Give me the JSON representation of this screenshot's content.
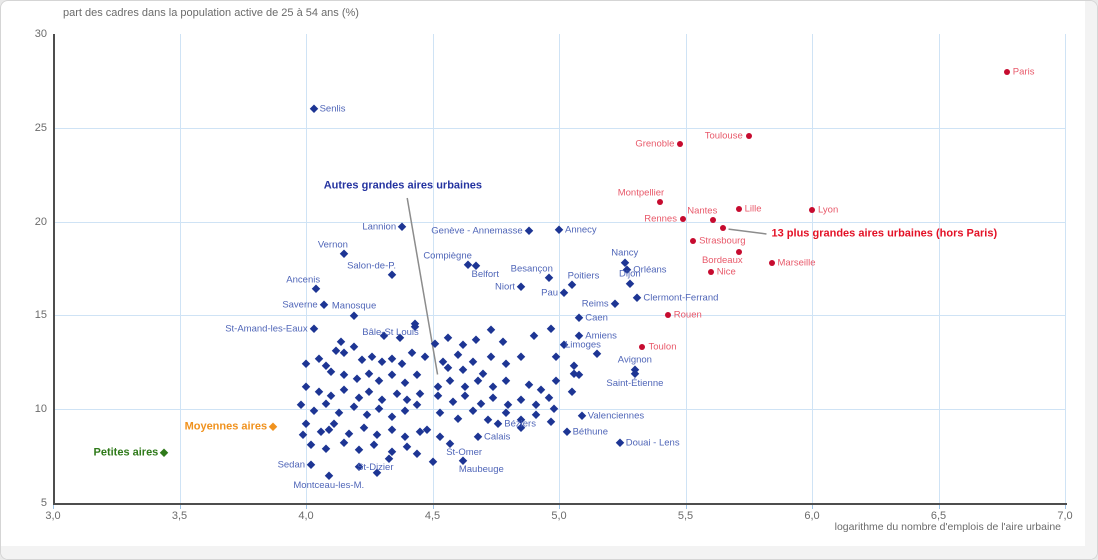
{
  "chart_data": {
    "type": "scatter",
    "title": "part des cadres dans la population active de 25 à 54 ans (%)",
    "xlabel": "logarithme du nombre d'emplois de l'aire urbaine",
    "x_axis": {
      "min": 3.0,
      "max": 7.0,
      "ticks": [
        {
          "label": "3,0",
          "v": 3.0
        },
        {
          "label": "3,5",
          "v": 3.5
        },
        {
          "label": "4,0",
          "v": 4.0
        },
        {
          "label": "4,5",
          "v": 4.5
        },
        {
          "label": "5,0",
          "v": 5.0
        },
        {
          "label": "5,5",
          "v": 5.5
        },
        {
          "label": "6,0",
          "v": 6.0
        },
        {
          "label": "6,5",
          "v": 6.5
        },
        {
          "label": "7,0",
          "v": 7.0
        }
      ]
    },
    "y_axis": {
      "min": 5,
      "max": 30,
      "ticks": [
        {
          "label": "5",
          "v": 5
        },
        {
          "label": "10",
          "v": 10
        },
        {
          "label": "15",
          "v": 15
        },
        {
          "label": "20",
          "v": 20
        },
        {
          "label": "25",
          "v": 25
        },
        {
          "label": "30",
          "v": 30
        }
      ]
    },
    "colors": {
      "grid": "#cfe3f5",
      "axis": "#4d4d4d",
      "text": "#6b6b6b",
      "leader": "#8c8c8c"
    },
    "grid": true,
    "legend_position": "annotations-in-plot",
    "series": [
      {
        "id": "grandes13",
        "name": "13 plus grandes aires urbaines (hors Paris)",
        "marker": "circle",
        "color": "#c60b2f",
        "label_color": "#e8596a",
        "points": [
          {
            "name": "Paris",
            "x": 6.77,
            "y": 27.97,
            "side": "right"
          },
          {
            "name": "Toulouse",
            "x": 5.75,
            "y": 24.56,
            "side": "left"
          },
          {
            "name": "Grenoble",
            "x": 5.48,
            "y": 24.14,
            "side": "left"
          },
          {
            "name": "Montpellier",
            "x": 5.4,
            "y": 21.04,
            "side": "above-left"
          },
          {
            "name": "Lyon",
            "x": 6.0,
            "y": 20.62,
            "side": "right"
          },
          {
            "name": "Lille",
            "x": 5.71,
            "y": 20.67,
            "side": "right"
          },
          {
            "name": "Nantes",
            "x": 5.61,
            "y": 20.08,
            "side": "above-left"
          },
          {
            "name": "Rennes",
            "x": 5.49,
            "y": 20.14,
            "side": "left"
          },
          {
            "name": "Strasbourg",
            "x": 5.53,
            "y": 18.97,
            "side": "right"
          },
          {
            "name": "Bordeaux",
            "x": 5.71,
            "y": 18.38,
            "side": "below-left"
          },
          {
            "name": "Marseille",
            "x": 5.84,
            "y": 17.79,
            "side": "right"
          },
          {
            "name": "Nice",
            "x": 5.6,
            "y": 17.31,
            "side": "right"
          },
          {
            "name": "Rouen",
            "x": 5.43,
            "y": 15.02,
            "side": "right"
          },
          {
            "name": "Toulon",
            "x": 5.33,
            "y": 13.32,
            "side": "right"
          }
        ],
        "extra": [
          [
            5.65,
            19.66
          ]
        ]
      },
      {
        "id": "autres",
        "name": "Autres grandes aires urbaines",
        "marker": "diamond",
        "color": "#1d3594",
        "label_color": "#5066b8",
        "points": [
          {
            "name": "Senlis",
            "x": 4.03,
            "y": 26.0,
            "side": "right"
          },
          {
            "name": "Lannion",
            "x": 4.38,
            "y": 19.71,
            "side": "left"
          },
          {
            "name": "Genève - Annemasse",
            "x": 4.88,
            "y": 19.5,
            "side": "left"
          },
          {
            "name": "Annecy",
            "x": 5.0,
            "y": 19.55,
            "side": "right"
          },
          {
            "name": "Vernon",
            "x": 4.15,
            "y": 18.27,
            "side": "above-left"
          },
          {
            "name": "Compiègne",
            "x": 4.64,
            "y": 17.69,
            "side": "above-left"
          },
          {
            "name": "Belfort",
            "x": 4.67,
            "y": 17.63,
            "side": "below-right"
          },
          {
            "name": "Salon-de-P.",
            "x": 4.34,
            "y": 17.15,
            "side": "above-left"
          },
          {
            "name": "Besançon",
            "x": 4.96,
            "y": 17.0,
            "side": "above-left"
          },
          {
            "name": "Poitiers",
            "x": 5.05,
            "y": 16.62,
            "side": "above-right"
          },
          {
            "name": "Ancenis",
            "x": 4.04,
            "y": 16.4,
            "side": "above-left"
          },
          {
            "name": "Niort",
            "x": 4.85,
            "y": 16.51,
            "side": "left"
          },
          {
            "name": "Pau",
            "x": 5.02,
            "y": 16.19,
            "side": "left"
          },
          {
            "name": "Reims",
            "x": 5.22,
            "y": 15.61,
            "side": "left"
          },
          {
            "name": "Saverne",
            "x": 4.07,
            "y": 15.55,
            "side": "left"
          },
          {
            "name": "Manosque",
            "x": 4.19,
            "y": 14.97,
            "side": "above"
          },
          {
            "name": "Nancy",
            "x": 5.26,
            "y": 17.79,
            "side": "above"
          },
          {
            "name": "Orléans",
            "x": 5.27,
            "y": 17.42,
            "side": "right"
          },
          {
            "name": "Dijon",
            "x": 5.28,
            "y": 16.67,
            "side": "above"
          },
          {
            "name": "Clermont-Ferrand",
            "x": 5.31,
            "y": 15.93,
            "side": "right"
          },
          {
            "name": "Caen",
            "x": 5.08,
            "y": 14.86,
            "side": "right"
          },
          {
            "name": "St-Amand-les-Eaux",
            "x": 4.03,
            "y": 14.27,
            "side": "left"
          },
          {
            "name": "Bâle-St Louis",
            "x": 4.43,
            "y": 14.54,
            "side": "below-left"
          },
          {
            "name": "Amiens",
            "x": 5.08,
            "y": 13.9,
            "side": "right"
          },
          {
            "name": "Limoges",
            "x": 5.15,
            "y": 12.94,
            "side": "above-left"
          },
          {
            "name": "Avignon",
            "x": 5.3,
            "y": 12.09,
            "side": "above"
          },
          {
            "name": "Saint-Étienne",
            "x": 5.3,
            "y": 11.87,
            "side": "below"
          },
          {
            "name": "Valenciennes",
            "x": 5.09,
            "y": 9.64,
            "side": "right"
          },
          {
            "name": "Béziers",
            "x": 4.76,
            "y": 9.21,
            "side": "right"
          },
          {
            "name": "Béthune",
            "x": 5.03,
            "y": 8.78,
            "side": "right"
          },
          {
            "name": "Douai - Lens",
            "x": 5.24,
            "y": 8.2,
            "side": "right"
          },
          {
            "name": "Calais",
            "x": 4.68,
            "y": 8.52,
            "side": "right"
          },
          {
            "name": "St-Omer",
            "x": 4.57,
            "y": 8.15,
            "side": "below-right"
          },
          {
            "name": "Maubeuge",
            "x": 4.62,
            "y": 7.24,
            "side": "below-right"
          },
          {
            "name": "Sedan",
            "x": 4.02,
            "y": 7.03,
            "side": "left"
          },
          {
            "name": "St-Dizier",
            "x": 4.33,
            "y": 7.35,
            "side": "below-left"
          },
          {
            "name": "Montceau-les-M.",
            "x": 4.09,
            "y": 6.44,
            "side": "below"
          }
        ],
        "extra": [
          [
            4.0,
            12.4
          ],
          [
            4.05,
            12.7
          ],
          [
            4.08,
            12.3
          ],
          [
            4.12,
            13.1
          ],
          [
            4.15,
            13.0
          ],
          [
            4.19,
            13.3
          ],
          [
            4.22,
            12.6
          ],
          [
            4.26,
            12.8
          ],
          [
            4.3,
            12.5
          ],
          [
            4.34,
            12.7
          ],
          [
            4.38,
            12.4
          ],
          [
            4.42,
            13.0
          ],
          [
            4.1,
            12.0
          ],
          [
            4.15,
            11.8
          ],
          [
            4.2,
            11.6
          ],
          [
            4.25,
            11.9
          ],
          [
            4.29,
            11.5
          ],
          [
            4.34,
            11.8
          ],
          [
            4.39,
            11.4
          ],
          [
            4.44,
            11.8
          ],
          [
            4.0,
            11.2
          ],
          [
            4.05,
            10.9
          ],
          [
            4.1,
            10.7
          ],
          [
            4.15,
            11.0
          ],
          [
            4.21,
            10.6
          ],
          [
            4.25,
            10.9
          ],
          [
            4.3,
            10.5
          ],
          [
            4.36,
            10.8
          ],
          [
            4.4,
            10.5
          ],
          [
            4.45,
            10.8
          ],
          [
            3.98,
            10.2
          ],
          [
            4.03,
            9.9
          ],
          [
            4.08,
            10.3
          ],
          [
            4.13,
            9.8
          ],
          [
            4.19,
            10.1
          ],
          [
            4.24,
            9.7
          ],
          [
            4.29,
            10.0
          ],
          [
            4.34,
            9.6
          ],
          [
            4.39,
            9.9
          ],
          [
            4.44,
            10.2
          ],
          [
            4.0,
            9.2
          ],
          [
            4.06,
            8.8
          ],
          [
            4.11,
            9.2
          ],
          [
            4.17,
            8.7
          ],
          [
            4.23,
            9.0
          ],
          [
            4.28,
            8.6
          ],
          [
            4.34,
            8.9
          ],
          [
            4.39,
            8.5
          ],
          [
            4.45,
            8.8
          ],
          [
            4.02,
            8.1
          ],
          [
            4.08,
            7.9
          ],
          [
            4.15,
            8.2
          ],
          [
            4.21,
            7.8
          ],
          [
            4.27,
            8.1
          ],
          [
            4.34,
            7.7
          ],
          [
            4.4,
            8.0
          ],
          [
            4.52,
            11.2
          ],
          [
            4.57,
            11.5
          ],
          [
            4.63,
            11.2
          ],
          [
            4.68,
            11.5
          ],
          [
            4.74,
            11.2
          ],
          [
            4.79,
            11.5
          ],
          [
            4.52,
            10.7
          ],
          [
            4.58,
            10.4
          ],
          [
            4.63,
            10.7
          ],
          [
            4.69,
            10.3
          ],
          [
            4.74,
            10.6
          ],
          [
            4.8,
            10.2
          ],
          [
            4.85,
            10.5
          ],
          [
            4.91,
            10.2
          ],
          [
            4.96,
            10.6
          ],
          [
            4.53,
            9.8
          ],
          [
            4.6,
            9.5
          ],
          [
            4.66,
            9.9
          ],
          [
            4.72,
            9.4
          ],
          [
            4.79,
            9.8
          ],
          [
            4.85,
            9.4
          ],
          [
            4.91,
            9.7
          ],
          [
            4.98,
            10.0
          ],
          [
            4.37,
            13.8
          ],
          [
            4.43,
            14.4
          ],
          [
            4.51,
            13.5
          ],
          [
            4.56,
            13.8
          ],
          [
            4.62,
            13.4
          ],
          [
            4.67,
            13.7
          ],
          [
            4.73,
            14.2
          ],
          [
            4.78,
            13.6
          ],
          [
            4.47,
            12.8
          ],
          [
            4.54,
            12.5
          ],
          [
            4.6,
            12.9
          ],
          [
            4.66,
            12.5
          ],
          [
            4.73,
            12.8
          ],
          [
            4.79,
            12.4
          ],
          [
            4.85,
            12.8
          ],
          [
            4.99,
            12.8
          ],
          [
            5.06,
            12.3
          ],
          [
            5.06,
            11.9
          ],
          [
            5.08,
            11.8
          ],
          [
            5.05,
            10.9
          ],
          [
            4.99,
            11.5
          ],
          [
            4.14,
            13.6
          ],
          [
            4.31,
            13.9
          ],
          [
            4.48,
            8.9
          ],
          [
            4.53,
            8.5
          ],
          [
            4.44,
            7.6
          ],
          [
            4.5,
            7.2
          ],
          [
            4.21,
            6.9
          ],
          [
            4.28,
            6.6
          ],
          [
            4.09,
            8.9
          ],
          [
            3.99,
            8.6
          ],
          [
            4.62,
            12.1
          ],
          [
            4.7,
            11.9
          ],
          [
            4.56,
            12.2
          ],
          [
            4.88,
            11.3
          ],
          [
            4.93,
            11.0
          ],
          [
            4.85,
            9.0
          ],
          [
            4.97,
            9.3
          ],
          [
            5.02,
            13.4
          ],
          [
            4.9,
            13.9
          ],
          [
            4.97,
            14.3
          ]
        ]
      },
      {
        "id": "moyennes",
        "name": "Moyennes aires",
        "marker": "diamond",
        "color": "#f0921e",
        "label_color": "#f0921e",
        "bold_labels": true,
        "points": [
          {
            "name": "Moyennes aires",
            "x": 3.87,
            "y": 9.05,
            "side": "left"
          }
        ],
        "extra": []
      },
      {
        "id": "petites",
        "name": "Petites aires",
        "marker": "diamond",
        "color": "#2f7a1a",
        "label_color": "#2f7a1a",
        "bold_labels": true,
        "points": [
          {
            "name": "Petites aires",
            "x": 3.44,
            "y": 7.67,
            "side": "left"
          }
        ],
        "extra": []
      }
    ],
    "annotations": [
      {
        "id": "autres-note",
        "text": "Autres grandes aires urbaines",
        "color": "#2433a0",
        "x": 4.07,
        "y": 21.9,
        "line": {
          "x1": 4.4,
          "y1": 21.26,
          "x2": 4.52,
          "y2": 11.85
        }
      },
      {
        "id": "13plus-note",
        "text": "13 plus grandes aires urbaines (hors Paris)",
        "color": "#e31126",
        "x": 5.84,
        "y": 19.34,
        "line": {
          "x1": 5.82,
          "y1": 19.34,
          "x2": 5.67,
          "y2": 19.6
        }
      }
    ]
  }
}
